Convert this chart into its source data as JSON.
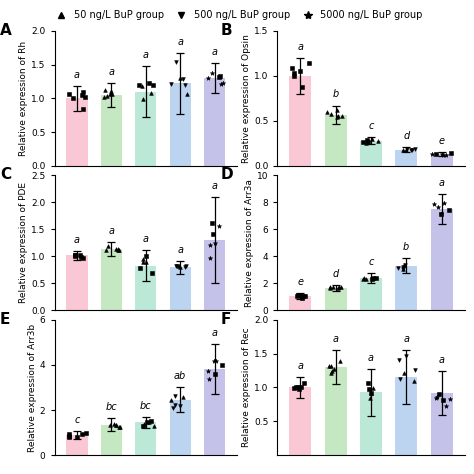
{
  "legend": {
    "markers": [
      "^",
      "v",
      "*"
    ],
    "labels": [
      "50 ng/L BuP group",
      "500 ng/L BuP group",
      "5000 ng/L BuP group"
    ]
  },
  "panels": [
    {
      "label": "A",
      "ylabel": "Relative expression of Rh",
      "ylim": [
        0.0,
        2.0
      ],
      "yticks": [
        0.0,
        0.5,
        1.0,
        1.5,
        2.0
      ],
      "bar_colors": [
        "#f9c8d4",
        "#c5e8c2",
        "#bce8d8",
        "#bcd4ef",
        "#c4c2e8"
      ],
      "means": [
        1.0,
        1.05,
        1.1,
        1.22,
        1.3
      ],
      "errors": [
        0.18,
        0.18,
        0.38,
        0.45,
        0.22
      ],
      "sig_labels": [
        "a",
        "a",
        "a",
        "a",
        "a"
      ]
    },
    {
      "label": "B",
      "ylabel": "Relative expression of Opsin",
      "ylim": [
        0.0,
        1.5
      ],
      "yticks": [
        0.0,
        0.5,
        1.0,
        1.5
      ],
      "bar_colors": [
        "#f9c8d4",
        "#c5e8c2",
        "#bce8d8",
        "#bcd4ef",
        "#c4c2e8"
      ],
      "means": [
        1.0,
        0.57,
        0.28,
        0.18,
        0.13
      ],
      "errors": [
        0.2,
        0.1,
        0.04,
        0.03,
        0.02
      ],
      "sig_labels": [
        "a",
        "b",
        "c",
        "d",
        "e"
      ]
    },
    {
      "label": "C",
      "ylabel": "Relative expression of PDE",
      "ylim": [
        0.0,
        2.5
      ],
      "yticks": [
        0.0,
        0.5,
        1.0,
        1.5,
        2.0,
        2.5
      ],
      "bar_colors": [
        "#f9c8d4",
        "#c5e8c2",
        "#bce8d8",
        "#bcd4ef",
        "#c4c2e8"
      ],
      "means": [
        1.02,
        1.13,
        0.83,
        0.8,
        1.3
      ],
      "errors": [
        0.08,
        0.13,
        0.28,
        0.12,
        0.8
      ],
      "sig_labels": [
        "a",
        "a",
        "a",
        "a",
        "a"
      ]
    },
    {
      "label": "D",
      "ylabel": "Relative expression of Arr3a",
      "ylim": [
        0,
        10
      ],
      "yticks": [
        0,
        2,
        4,
        6,
        8,
        10
      ],
      "bar_colors": [
        "#f9c8d4",
        "#c5e8c2",
        "#bce8d8",
        "#bcd4ef",
        "#c4c2e8"
      ],
      "means": [
        1.1,
        1.65,
        2.4,
        3.3,
        7.5
      ],
      "errors": [
        0.22,
        0.22,
        0.38,
        0.55,
        1.1
      ],
      "sig_labels": [
        "e",
        "d",
        "c",
        "b",
        "a"
      ]
    },
    {
      "label": "E",
      "ylabel": "Relative expression of Arr3b",
      "ylim": [
        0,
        6
      ],
      "yticks": [
        0,
        2,
        4,
        6
      ],
      "bar_colors": [
        "#f9c8d4",
        "#c5e8c2",
        "#bce8d8",
        "#bcd4ef",
        "#c4c2e8"
      ],
      "means": [
        0.88,
        1.35,
        1.45,
        2.45,
        3.82
      ],
      "errors": [
        0.18,
        0.28,
        0.25,
        0.55,
        1.1
      ],
      "sig_labels": [
        "c",
        "bc",
        "bc",
        "ab",
        "a"
      ]
    },
    {
      "label": "F",
      "ylabel": "Relative expression of Rec",
      "ylim": [
        0.0,
        2.0
      ],
      "yticks": [
        0.5,
        1.0,
        1.5,
        2.0
      ],
      "bar_colors": [
        "#f9c8d4",
        "#c5e8c2",
        "#bce8d8",
        "#bcd4ef",
        "#c4c2e8"
      ],
      "means": [
        1.0,
        1.3,
        0.93,
        1.15,
        0.92
      ],
      "errors": [
        0.15,
        0.25,
        0.35,
        0.4,
        0.32
      ],
      "sig_labels": [
        "a",
        "a",
        "a",
        "a",
        "a"
      ]
    }
  ],
  "bg_color": "#ffffff",
  "fontsize_ylabel": 6.5,
  "fontsize_sig": 7,
  "fontsize_panel": 11,
  "fontsize_ytick": 6.5,
  "fontsize_legend": 7
}
